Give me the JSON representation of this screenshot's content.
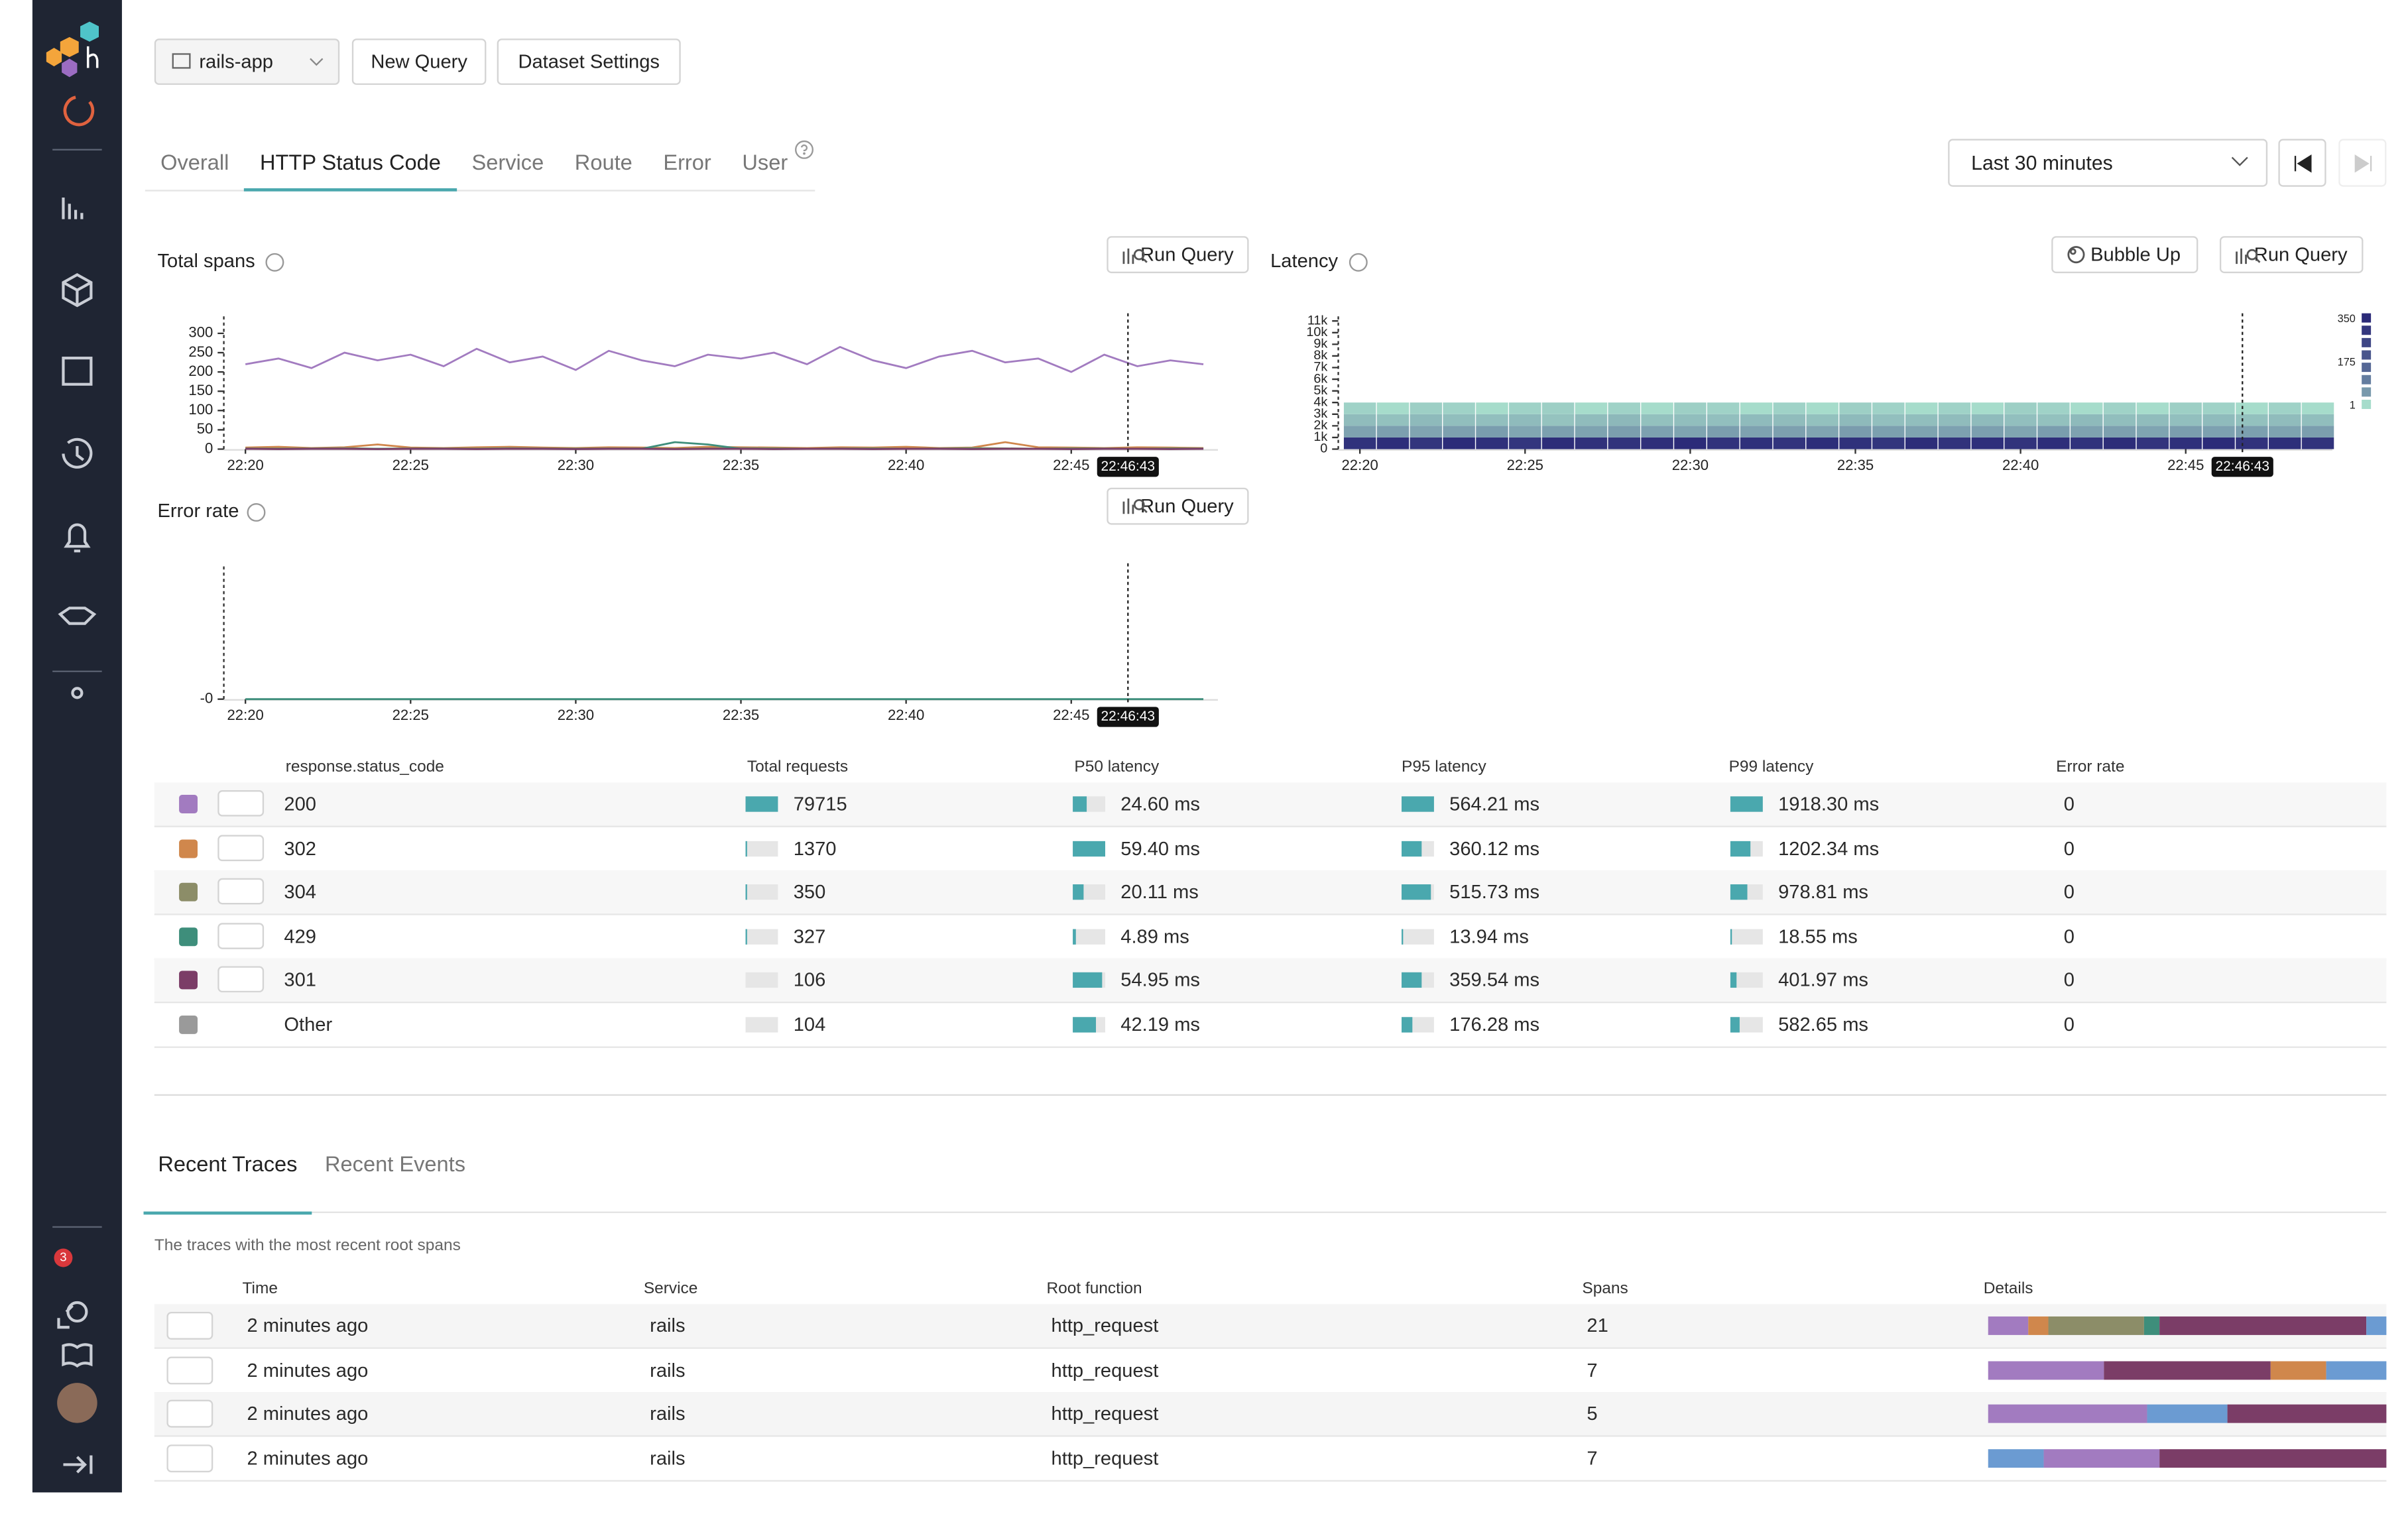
{
  "sidebar": {
    "badge": "3"
  },
  "toolbar": {
    "dataset": "rails-app",
    "new_query": "New Query",
    "dataset_settings": "Dataset Settings",
    "time_range": "Last 30 minutes"
  },
  "tabs": {
    "items": [
      "Overall",
      "HTTP Status Code",
      "Service",
      "Route",
      "Error",
      "User"
    ],
    "active": 1
  },
  "chart_data": [
    {
      "type": "line",
      "title": "Total spans",
      "button": "Run Query",
      "cursor": "22:46:43",
      "x": [
        "22:20",
        null,
        null,
        null,
        null,
        "22:25",
        null,
        null,
        null,
        null,
        "22:30",
        null,
        null,
        null,
        null,
        "22:35",
        null,
        null,
        null,
        null,
        "22:40",
        null,
        null,
        null,
        null,
        "22:45",
        null,
        null,
        null,
        null
      ],
      "ylim": [
        0,
        336
      ],
      "yticks": [
        0,
        50,
        100,
        150,
        200,
        250,
        300
      ],
      "series": [
        {
          "color": "#a27bc0",
          "values": [
            220,
            235,
            210,
            250,
            230,
            245,
            215,
            260,
            225,
            240,
            205,
            255,
            230,
            215,
            245,
            235,
            250,
            220,
            265,
            230,
            210,
            240,
            255,
            225,
            235,
            200,
            245,
            215,
            230,
            220
          ]
        },
        {
          "color": "#d0874c",
          "values": [
            4,
            6,
            3,
            5,
            12,
            4,
            3,
            5,
            6,
            4,
            3,
            5,
            4,
            3,
            6,
            5,
            4,
            3,
            5,
            4,
            6,
            3,
            4,
            18,
            5,
            4,
            3,
            5,
            4,
            3
          ]
        },
        {
          "color": "#8c8d68",
          "values": [
            2,
            1,
            2,
            3,
            1,
            2,
            2,
            1,
            3,
            2,
            1,
            2,
            2,
            1,
            2,
            3,
            2,
            1,
            2,
            2,
            1,
            2,
            3,
            2,
            1,
            2,
            2,
            1,
            2,
            2
          ]
        },
        {
          "color": "#3e8e7b",
          "values": [
            1,
            1,
            1,
            1,
            1,
            1,
            1,
            1,
            1,
            1,
            1,
            1,
            1,
            18,
            12,
            1,
            1,
            1,
            1,
            1,
            1,
            1,
            1,
            1,
            1,
            1,
            1,
            1,
            1,
            1
          ]
        },
        {
          "color": "#7b3d67",
          "values": [
            1,
            0,
            1,
            1,
            0,
            1,
            1,
            0,
            1,
            1,
            0,
            1,
            1,
            0,
            1,
            1,
            0,
            1,
            1,
            0,
            1,
            1,
            0,
            1,
            1,
            0,
            1,
            1,
            0,
            1
          ]
        }
      ]
    },
    {
      "type": "heatmap",
      "title": "Latency",
      "buttons": [
        "Bubble Up",
        "Run Query"
      ],
      "cursor": "22:46:43",
      "x": [
        "22:20",
        null,
        null,
        null,
        null,
        "22:25",
        null,
        null,
        null,
        null,
        "22:30",
        null,
        null,
        null,
        null,
        "22:35",
        null,
        null,
        null,
        null,
        "22:40",
        null,
        null,
        null,
        null,
        "22:45",
        null,
        null,
        null,
        null
      ],
      "ylim": [
        0,
        11130
      ],
      "yticks": [
        0,
        {
          "value": 1000,
          "label": "1k"
        },
        {
          "value": 2000,
          "label": "2k"
        },
        {
          "value": 3000,
          "label": "3k"
        },
        {
          "value": 4000,
          "label": "4k"
        },
        {
          "value": 5000,
          "label": "5k"
        },
        {
          "value": 6000,
          "label": "6k"
        },
        {
          "value": 7000,
          "label": "7k"
        },
        {
          "value": 8000,
          "label": "8k"
        },
        {
          "value": 9000,
          "label": "9k"
        },
        {
          "value": 10000,
          "label": "10k"
        },
        {
          "value": 11000,
          "label": "11k"
        }
      ],
      "bins": [
        0,
        1000,
        2000,
        3000,
        4000
      ],
      "counts": [
        [
          320,
          38,
          12,
          2
        ],
        [
          335,
          42,
          9,
          1
        ],
        [
          310,
          35,
          14,
          3
        ],
        [
          342,
          40,
          11,
          2
        ],
        [
          328,
          45,
          10,
          1
        ],
        [
          305,
          33,
          13,
          2
        ],
        [
          338,
          41,
          8,
          3
        ],
        [
          322,
          37,
          12,
          1
        ],
        [
          315,
          44,
          15,
          2
        ],
        [
          330,
          39,
          9,
          1
        ],
        [
          345,
          36,
          11,
          3
        ],
        [
          318,
          43,
          10,
          2
        ],
        [
          326,
          38,
          13,
          1
        ],
        [
          311,
          40,
          12,
          2
        ],
        [
          336,
          35,
          9,
          1
        ],
        [
          324,
          46,
          14,
          3
        ],
        [
          309,
          41,
          10,
          2
        ],
        [
          340,
          37,
          11,
          1
        ],
        [
          317,
          39,
          12,
          2
        ],
        [
          329,
          42,
          13,
          1
        ],
        [
          314,
          34,
          10,
          3
        ],
        [
          333,
          45,
          9,
          2
        ],
        [
          321,
          38,
          14,
          1
        ],
        [
          339,
          40,
          11,
          2
        ],
        [
          312,
          36,
          12,
          1
        ],
        [
          327,
          43,
          10,
          3
        ],
        [
          344,
          39,
          13,
          2
        ],
        [
          319,
          41,
          9,
          1
        ],
        [
          331,
          37,
          12,
          2
        ],
        [
          316,
          44,
          11,
          1
        ]
      ],
      "color_scale": {
        "ticks": [
          350,
          175,
          1
        ],
        "colors": [
          "#2b2a78",
          "#a6dccb"
        ]
      }
    },
    {
      "type": "line",
      "title": "Error rate",
      "button": "Run Query",
      "cursor": "22:46:43",
      "x": [
        "22:20",
        null,
        null,
        null,
        null,
        "22:25",
        null,
        null,
        null,
        null,
        "22:30",
        null,
        null,
        null,
        null,
        "22:35",
        null,
        null,
        null,
        null,
        "22:40",
        null,
        null,
        null,
        null,
        "22:45",
        null,
        null,
        null,
        null
      ],
      "ylim": [
        0,
        1
      ],
      "yticks": [
        {
          "value": 0,
          "label": "-0"
        }
      ],
      "series": [
        {
          "color": "#3e8e7b",
          "values": [
            0,
            0,
            0,
            0,
            0,
            0,
            0,
            0,
            0,
            0,
            0,
            0,
            0,
            0,
            0,
            0,
            0,
            0,
            0,
            0,
            0,
            0,
            0,
            0,
            0,
            0,
            0,
            0,
            0,
            0
          ]
        }
      ]
    }
  ],
  "status_table": {
    "headers": [
      "response.status_code",
      "Total requests",
      "P50 latency",
      "P95 latency",
      "P99 latency",
      "Error rate"
    ],
    "rows": [
      {
        "color": "#a27bc0",
        "code": "200",
        "expandable": true,
        "total_requests": 79715,
        "p50": {
          "value": 24.6,
          "label": "24.60 ms"
        },
        "p95": {
          "value": 564.21,
          "label": "564.21 ms"
        },
        "p99": {
          "value": 1918.3,
          "label": "1918.30 ms"
        },
        "error_rate": 0
      },
      {
        "color": "#d0874c",
        "code": "302",
        "expandable": true,
        "total_requests": 1370,
        "p50": {
          "value": 59.4,
          "label": "59.40 ms"
        },
        "p95": {
          "value": 360.12,
          "label": "360.12 ms"
        },
        "p99": {
          "value": 1202.34,
          "label": "1202.34 ms"
        },
        "error_rate": 0
      },
      {
        "color": "#8c8d68",
        "code": "304",
        "expandable": true,
        "total_requests": 350,
        "p50": {
          "value": 20.11,
          "label": "20.11 ms"
        },
        "p95": {
          "value": 515.73,
          "label": "515.73 ms"
        },
        "p99": {
          "value": 978.81,
          "label": "978.81 ms"
        },
        "error_rate": 0
      },
      {
        "color": "#3e8e7b",
        "code": "429",
        "expandable": true,
        "total_requests": 327,
        "p50": {
          "value": 4.89,
          "label": "4.89 ms"
        },
        "p95": {
          "value": 13.94,
          "label": "13.94 ms"
        },
        "p99": {
          "value": 18.55,
          "label": "18.55 ms"
        },
        "error_rate": 0
      },
      {
        "color": "#7b3d67",
        "code": "301",
        "expandable": true,
        "total_requests": 106,
        "p50": {
          "value": 54.95,
          "label": "54.95 ms"
        },
        "p95": {
          "value": 359.54,
          "label": "359.54 ms"
        },
        "p99": {
          "value": 401.97,
          "label": "401.97 ms"
        },
        "error_rate": 0
      },
      {
        "color": "#9a9a9a",
        "code": "Other",
        "expandable": false,
        "total_requests": 104,
        "p50": {
          "value": 42.19,
          "label": "42.19 ms"
        },
        "p95": {
          "value": 176.28,
          "label": "176.28 ms"
        },
        "p99": {
          "value": 582.65,
          "label": "582.65 ms"
        },
        "error_rate": 0
      }
    ]
  },
  "traces": {
    "tabs": [
      "Recent Traces",
      "Recent Events"
    ],
    "description": "The traces with the most recent root spans",
    "headers": [
      "Time",
      "Service",
      "Root function",
      "Spans",
      "Details"
    ],
    "rows": [
      {
        "time": "2 minutes ago",
        "service": "rails",
        "root_function": "http_request",
        "spans": 21,
        "details": [
          {
            "color": "#a27bc0",
            "share": 10
          },
          {
            "color": "#d0874c",
            "share": 5
          },
          {
            "color": "#8c8d68",
            "share": 24
          },
          {
            "color": "#3e8e7b",
            "share": 4
          },
          {
            "color": "#7b3d67",
            "share": 52
          },
          {
            "color": "#6b9bd2",
            "share": 5
          }
        ]
      },
      {
        "time": "2 minutes ago",
        "service": "rails",
        "root_function": "http_request",
        "spans": 7,
        "details": [
          {
            "color": "#a27bc0",
            "share": 29
          },
          {
            "color": "#7b3d67",
            "share": 42
          },
          {
            "color": "#d0874c",
            "share": 14
          },
          {
            "color": "#6b9bd2",
            "share": 15
          }
        ]
      },
      {
        "time": "2 minutes ago",
        "service": "rails",
        "root_function": "http_request",
        "spans": 5,
        "details": [
          {
            "color": "#a27bc0",
            "share": 40
          },
          {
            "color": "#6b9bd2",
            "share": 20
          },
          {
            "color": "#7b3d67",
            "share": 40
          }
        ]
      },
      {
        "time": "2 minutes ago",
        "service": "rails",
        "root_function": "http_request",
        "spans": 7,
        "details": [
          {
            "color": "#6b9bd2",
            "share": 14
          },
          {
            "color": "#a27bc0",
            "share": 29
          },
          {
            "color": "#7b3d67",
            "share": 57
          }
        ]
      }
    ]
  }
}
